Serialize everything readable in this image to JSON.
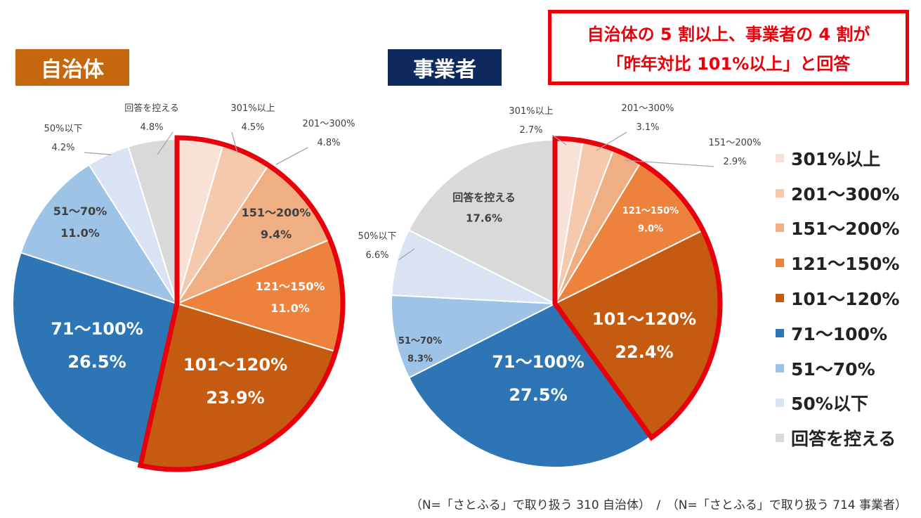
{
  "header": {
    "muni_tag": "自治体",
    "biz_tag": "事業者",
    "callout_line1": "自治体の 5 割以上、事業者の 4 割が",
    "callout_line2": "「昨年対比 101%以上」と回答"
  },
  "colors": {
    "301%以上": "#f8e1d6",
    "201〜300%": "#f5c9ac",
    "151〜200%": "#f0ae83",
    "121〜150%": "#ec823c",
    "101〜120%": "#c55a11",
    "71〜100%": "#2e75b6",
    "51〜70%": "#9dc3e6",
    "50%以下": "#dae3f3",
    "回答を控える": "#d9d9d9",
    "highlight": "#e8000b"
  },
  "legend": [
    {
      "key": "301%以上",
      "label": "301%以上"
    },
    {
      "key": "201〜300%",
      "label": "201～300%"
    },
    {
      "key": "151〜200%",
      "label": "151～200%"
    },
    {
      "key": "121〜150%",
      "label": "121～150%"
    },
    {
      "key": "101〜120%",
      "label": "101～120%"
    },
    {
      "key": "71〜100%",
      "label": "71～100%"
    },
    {
      "key": "51〜70%",
      "label": "51～70%"
    },
    {
      "key": "50%以下",
      "label": "50%以下"
    },
    {
      "key": "回答を控える",
      "label": "回答を控える"
    }
  ],
  "footnote": "（N=「さとふる」で取り扱う 310 自治体）　/　（N=「さとふる」で取り扱う 714 事業者）",
  "chart_data": [
    {
      "type": "pie",
      "title": "自治体",
      "categories": [
        "301%以上",
        "201〜300%",
        "151〜200%",
        "121〜150%",
        "101〜120%",
        "71〜100%",
        "51〜70%",
        "50%以下",
        "回答を控える"
      ],
      "labels": [
        "301%以上",
        "201～300%",
        "151～200%",
        "121～150%",
        "101～120%",
        "71～100%",
        "51～70%",
        "50%以下",
        "回答を控える"
      ],
      "values": [
        4.5,
        4.8,
        9.4,
        11.0,
        23.9,
        26.5,
        11.0,
        4.2,
        4.8
      ],
      "value_labels": [
        "4.5%",
        "4.8%",
        "9.4%",
        "11.0%",
        "23.9%",
        "26.5%",
        "11.0%",
        "4.2%",
        "4.8%"
      ],
      "highlighted_categories": [
        "301%以上",
        "201〜300%",
        "151〜200%",
        "121〜150%",
        "101〜120%"
      ]
    },
    {
      "type": "pie",
      "title": "事業者",
      "categories": [
        "301%以上",
        "201〜300%",
        "151〜200%",
        "121〜150%",
        "101〜120%",
        "71〜100%",
        "51〜70%",
        "50%以下",
        "回答を控える"
      ],
      "labels": [
        "301%以上",
        "201～300%",
        "151～200%",
        "121～150%",
        "101～120%",
        "71～100%",
        "51～70%",
        "50%以下",
        "回答を控える"
      ],
      "values": [
        2.7,
        3.1,
        2.9,
        9.0,
        22.4,
        27.5,
        8.3,
        6.6,
        17.6
      ],
      "value_labels": [
        "2.7%",
        "3.1%",
        "2.9%",
        "9.0%",
        "22.4%",
        "27.5%",
        "8.3%",
        "6.6%",
        "17.6%"
      ],
      "highlighted_categories": [
        "301%以上",
        "201〜300%",
        "151〜200%",
        "121〜150%",
        "101〜120%"
      ]
    }
  ]
}
